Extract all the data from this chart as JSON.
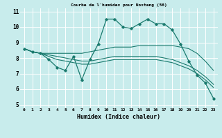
{
  "title": "Courbe de l'humidex pour Nostang (56)",
  "xlabel": "Humidex (Indice chaleur)",
  "bg_color": "#c8ecec",
  "grid_color": "#ffffff",
  "line_color": "#1a7a6e",
  "xlim": [
    -0.5,
    23.5
  ],
  "ylim": [
    4.8,
    11.2
  ],
  "xticks": [
    0,
    1,
    2,
    3,
    4,
    5,
    6,
    7,
    8,
    9,
    10,
    11,
    12,
    13,
    14,
    15,
    16,
    17,
    18,
    19,
    20,
    21,
    22,
    23
  ],
  "yticks": [
    5,
    6,
    7,
    8,
    9,
    10,
    11
  ],
  "series": [
    [
      8.6,
      8.4,
      8.3,
      7.9,
      7.4,
      7.2,
      8.1,
      6.6,
      7.9,
      8.9,
      10.5,
      10.5,
      10.0,
      9.9,
      10.2,
      10.5,
      10.2,
      10.2,
      9.8,
      8.9,
      7.8,
      6.9,
      6.4,
      5.4
    ],
    [
      8.6,
      8.4,
      8.3,
      8.3,
      8.3,
      8.3,
      8.3,
      8.3,
      8.4,
      8.5,
      8.6,
      8.7,
      8.7,
      8.7,
      8.8,
      8.8,
      8.8,
      8.8,
      8.8,
      8.7,
      8.6,
      8.3,
      7.8,
      7.2
    ],
    [
      8.6,
      8.4,
      8.3,
      8.2,
      8.1,
      8.0,
      7.9,
      7.8,
      7.8,
      7.9,
      8.0,
      8.1,
      8.1,
      8.1,
      8.1,
      8.1,
      8.1,
      8.0,
      7.9,
      7.7,
      7.5,
      7.2,
      6.8,
      6.3
    ],
    [
      8.6,
      8.4,
      8.3,
      8.1,
      7.9,
      7.8,
      7.7,
      7.6,
      7.6,
      7.7,
      7.8,
      7.9,
      7.9,
      7.9,
      7.9,
      7.9,
      7.9,
      7.8,
      7.7,
      7.5,
      7.3,
      7.0,
      6.6,
      6.1
    ]
  ]
}
